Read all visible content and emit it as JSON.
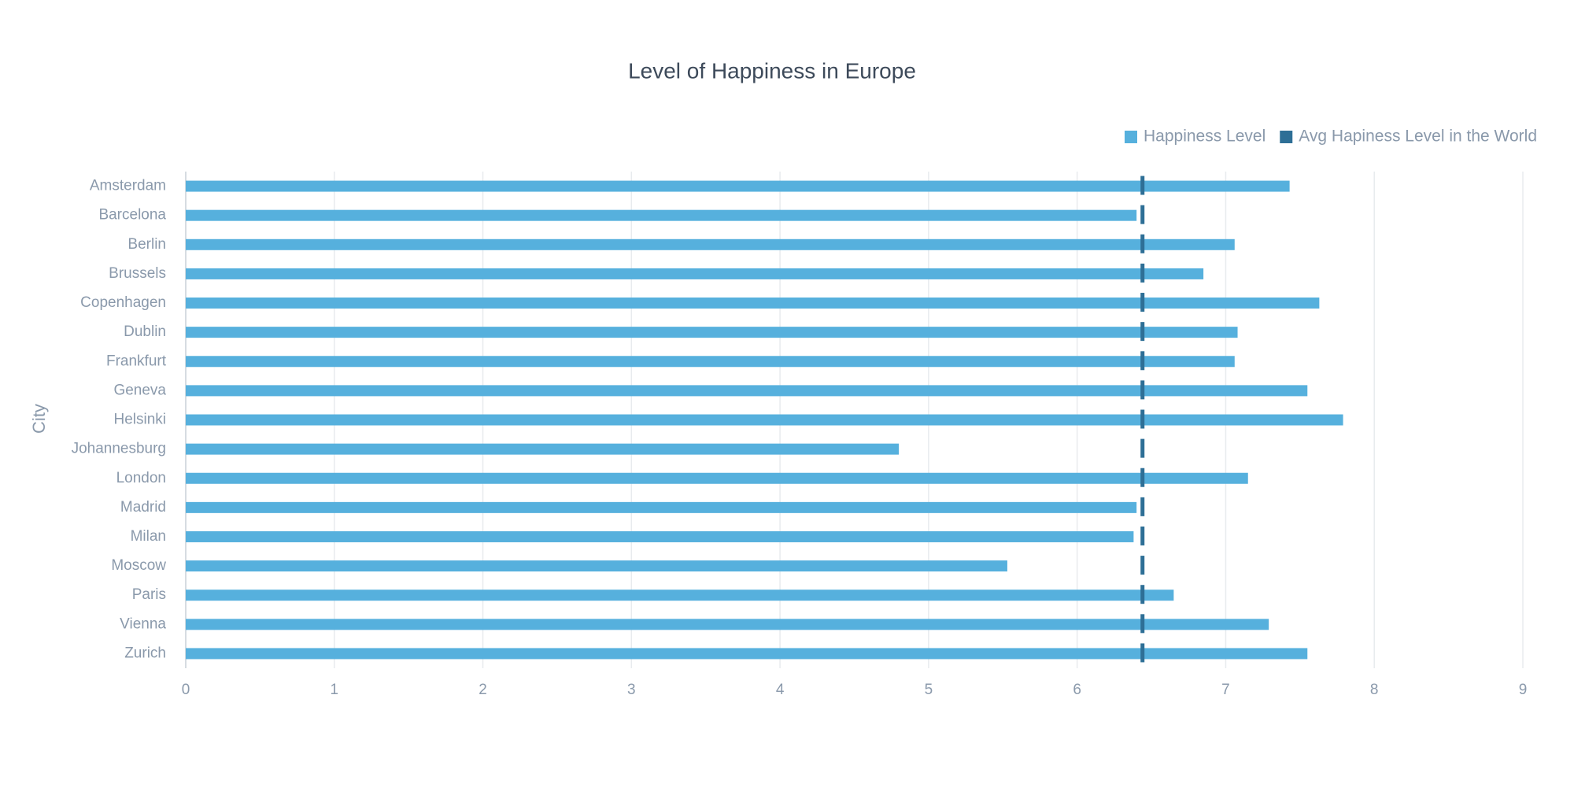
{
  "chart_data": {
    "type": "bar",
    "orientation": "horizontal",
    "title": "Level of Happiness in Europe",
    "y_label": "City",
    "categories": [
      "Amsterdam",
      "Barcelona",
      "Berlin",
      "Brussels",
      "Copenhagen",
      "Dublin",
      "Frankfurt",
      "Geneva",
      "Helsinki",
      "Johannesburg",
      "London",
      "Madrid",
      "Milan",
      "Moscow",
      "Paris",
      "Vienna",
      "Zurich"
    ],
    "series": [
      {
        "name": "Happiness Level",
        "color": "#56b0dd",
        "mark": "bar",
        "values": [
          7.43,
          6.4,
          7.06,
          6.85,
          7.63,
          7.08,
          7.06,
          7.55,
          7.79,
          4.8,
          7.15,
          6.4,
          6.38,
          5.53,
          6.65,
          7.29,
          7.55
        ]
      },
      {
        "name": "Avg Hapiness Level in the World",
        "color": "#2e6f96",
        "mark": "dash",
        "values": [
          6.44,
          6.44,
          6.44,
          6.44,
          6.44,
          6.44,
          6.44,
          6.44,
          6.44,
          6.44,
          6.44,
          6.44,
          6.44,
          6.44,
          6.44,
          6.44,
          6.44
        ]
      }
    ],
    "xlim": [
      0,
      9
    ],
    "xticks": [
      0,
      1,
      2,
      3,
      4,
      5,
      6,
      7,
      8,
      9
    ],
    "grid": true,
    "legend": "top-right"
  }
}
